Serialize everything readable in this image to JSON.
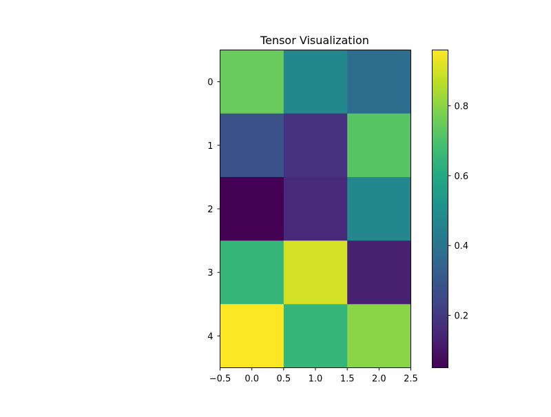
{
  "chart_data": {
    "type": "heatmap",
    "title": "Tensor Visualization",
    "colormap": "viridis",
    "rows": 5,
    "cols": 3,
    "values": [
      [
        0.75,
        0.47,
        0.38
      ],
      [
        0.28,
        0.18,
        0.72
      ],
      [
        0.05,
        0.16,
        0.47
      ],
      [
        0.65,
        0.9,
        0.13
      ],
      [
        0.96,
        0.65,
        0.8
      ]
    ],
    "x_ticks": [
      "−0.5",
      "0.0",
      "0.5",
      "1.0",
      "1.5",
      "2.0",
      "2.5"
    ],
    "y_ticks": [
      "0",
      "1",
      "2",
      "3",
      "4"
    ],
    "colorbar": {
      "range": [
        0.05,
        0.96
      ],
      "ticks": [
        {
          "value": 0.2,
          "label": "0.2"
        },
        {
          "value": 0.4,
          "label": "0.4"
        },
        {
          "value": 0.6,
          "label": "0.6"
        },
        {
          "value": 0.8,
          "label": "0.8"
        }
      ]
    }
  }
}
